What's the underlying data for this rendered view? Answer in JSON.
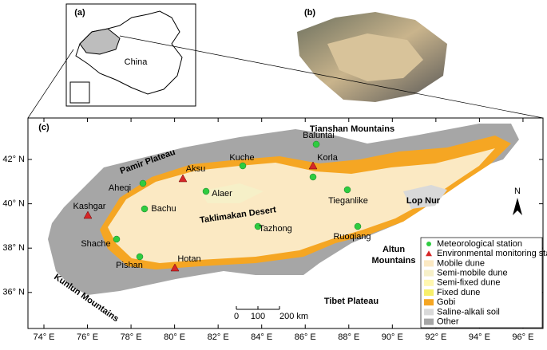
{
  "panel_a": {
    "label": "(a)",
    "country": "China"
  },
  "panel_b": {
    "label": "(b)"
  },
  "panel_c": {
    "label": "(c)",
    "desert": "Taklimakan Desert",
    "regions": [
      "Tianshan Mountains",
      "Pamir Plateau",
      "Lop Nur",
      "Kunlun Mountains",
      "Tibet Plateau"
    ],
    "altun_mountains": [
      "Altun",
      "Mountains"
    ],
    "stations": [
      "Baluntai",
      "Aksu",
      "Kuche",
      "Korla",
      "Aheqi",
      "Alaer",
      "Tieganlike",
      "Kashgar",
      "Bachu",
      "Tazhong",
      "Ruoqiang",
      "Shache",
      "Pishan",
      "Hotan"
    ],
    "lat_ticks": [
      {
        "value": 42,
        "label": "42° N"
      },
      {
        "value": 40,
        "label": "40° N"
      },
      {
        "value": 38,
        "label": "38° N"
      },
      {
        "value": 36,
        "label": "36° N"
      }
    ],
    "lon_ticks": [
      {
        "value": 74,
        "label": "74° E"
      },
      {
        "value": 76,
        "label": "76° E"
      },
      {
        "value": 78,
        "label": "78° E"
      },
      {
        "value": 80,
        "label": "80° E"
      },
      {
        "value": 82,
        "label": "82° E"
      },
      {
        "value": 84,
        "label": "84° E"
      },
      {
        "value": 86,
        "label": "86° E"
      },
      {
        "value": 88,
        "label": "88° E"
      },
      {
        "value": 90,
        "label": "90° E"
      },
      {
        "value": 92,
        "label": "92° E"
      },
      {
        "value": 94,
        "label": "94° E"
      },
      {
        "value": 96,
        "label": "96° E"
      }
    ],
    "scale_ticks": [
      0,
      100,
      {
        "value": 200,
        "label": "200 km"
      }
    ],
    "north": "N",
    "legend": [
      "Meteorological station",
      "Environmental monitoring station",
      "Mobile dune",
      "Semi-mobile dune",
      "Semi-fixed dune",
      "Fixed dune",
      "Gobi",
      "Saline-alkali soil",
      "Other"
    ]
  }
}
